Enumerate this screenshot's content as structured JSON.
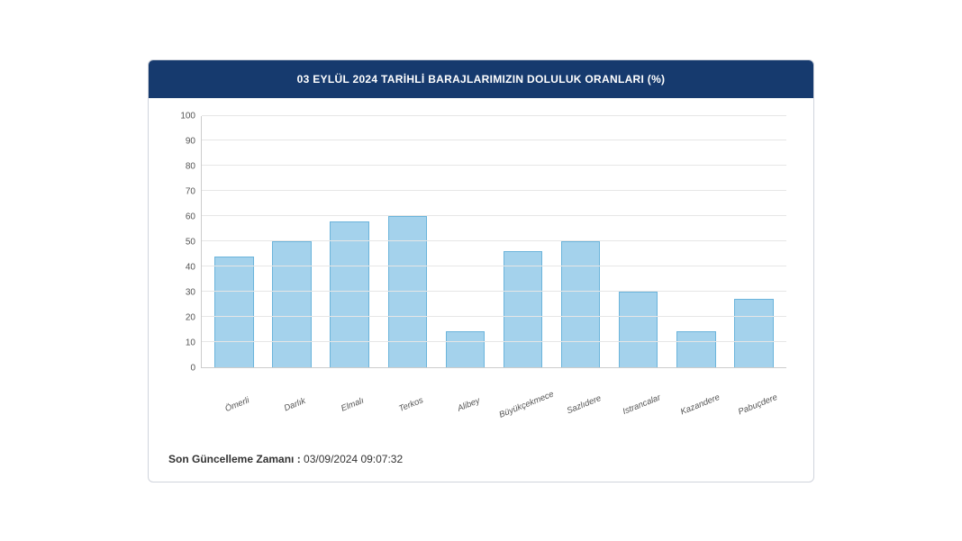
{
  "chart": {
    "type": "bar",
    "title": "03 EYLÜL 2024 TARİHLİ BARAJLARIMIZIN DOLULUK ORANLARI (%)",
    "title_bg": "#163a6e",
    "title_color": "#ffffff",
    "title_fontsize": 12,
    "categories": [
      "Ömerli",
      "Darlık",
      "Elmalı",
      "Terkos",
      "Alibey",
      "Büyükçekmece",
      "Sazlıdere",
      "Istrancalar",
      "Kazandere",
      "Pabuçdere"
    ],
    "values": [
      44,
      50,
      58,
      60,
      14,
      46,
      50,
      30,
      14,
      27
    ],
    "bar_fill": "#a4d2ec",
    "bar_border": "#6bb4db",
    "bar_width_pct": 68,
    "ylim": [
      0,
      100
    ],
    "ytick_step": 10,
    "grid_color": "#e6e6e6",
    "axis_color": "#cccccc",
    "label_color": "#555555",
    "label_fontsize": 10,
    "xlabel_fontsize": 9.5,
    "xlabel_rotate_deg": -22,
    "background": "#ffffff"
  },
  "footer": {
    "label": "Son Güncelleme Zamanı :",
    "value": "03/09/2024 09:07:32"
  },
  "card": {
    "border_color": "#d0d4dc",
    "border_radius": 6
  }
}
